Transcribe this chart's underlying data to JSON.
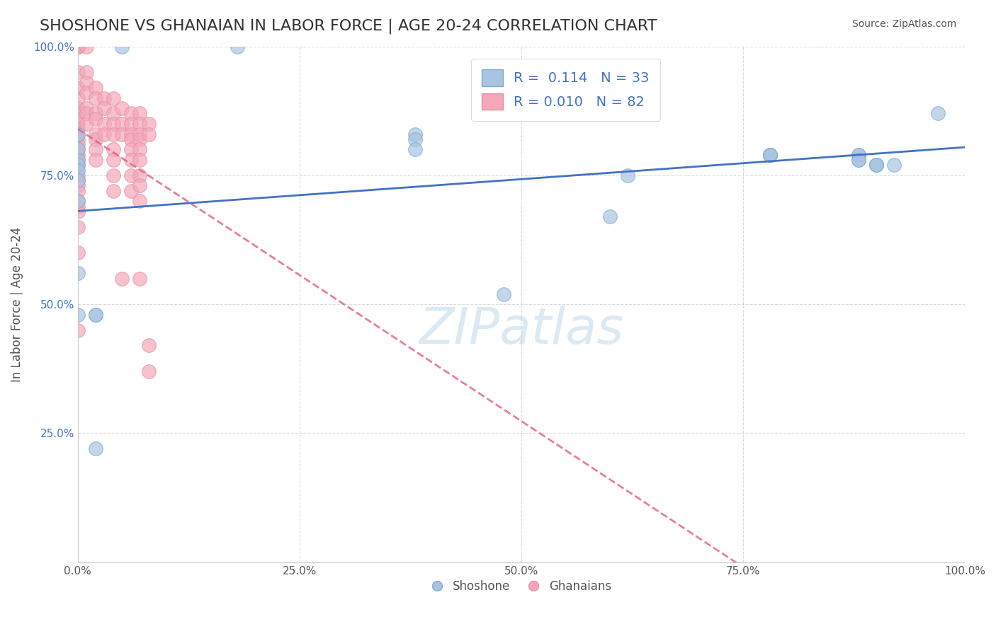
{
  "title": "SHOSHONE VS GHANAIAN IN LABOR FORCE | AGE 20-24 CORRELATION CHART",
  "source_text": "Source: ZipAtlas.com",
  "xlabel": "",
  "ylabel": "In Labor Force | Age 20-24",
  "xlim": [
    0.0,
    1.0
  ],
  "ylim": [
    0.0,
    1.0
  ],
  "xtick_labels": [
    "0.0%",
    "25.0%",
    "50.0%",
    "75.0%",
    "100.0%"
  ],
  "xtick_positions": [
    0.0,
    0.25,
    0.5,
    0.75,
    1.0
  ],
  "ytick_labels": [
    "25.0%",
    "50.0%",
    "75.0%",
    "100.0%"
  ],
  "ytick_positions": [
    0.25,
    0.5,
    0.75,
    1.0
  ],
  "shoshone_R": "0.114",
  "shoshone_N": "33",
  "ghanaian_R": "0.010",
  "ghanaian_N": "82",
  "shoshone_color": "#a8c4e0",
  "ghanaian_color": "#f4a7b9",
  "shoshone_line_color": "#4472c4",
  "ghanaian_line_color": "#e06080",
  "watermark": "ZIPatlas",
  "shoshone_x": [
    0.05,
    0.18,
    0.0,
    0.0,
    0.0,
    0.0,
    0.0,
    0.0,
    0.0,
    0.0,
    0.0,
    0.02,
    0.02,
    0.02,
    0.38,
    0.38,
    0.38,
    0.48,
    0.6,
    0.62,
    0.78,
    0.78,
    0.78,
    0.78,
    0.88,
    0.88,
    0.88,
    0.88,
    0.9,
    0.9,
    0.9,
    0.92,
    0.97
  ],
  "shoshone_y": [
    1.0,
    1.0,
    0.83,
    0.8,
    0.78,
    0.77,
    0.76,
    0.74,
    0.7,
    0.56,
    0.48,
    0.48,
    0.48,
    0.22,
    0.83,
    0.82,
    0.8,
    0.52,
    0.67,
    0.75,
    0.79,
    0.79,
    0.79,
    0.79,
    0.79,
    0.79,
    0.78,
    0.78,
    0.77,
    0.77,
    0.77,
    0.77,
    0.87
  ],
  "ghanaian_x": [
    0.0,
    0.0,
    0.0,
    0.0,
    0.0,
    0.0,
    0.0,
    0.0,
    0.0,
    0.0,
    0.0,
    0.0,
    0.0,
    0.0,
    0.0,
    0.0,
    0.0,
    0.0,
    0.0,
    0.0,
    0.0,
    0.0,
    0.0,
    0.0,
    0.0,
    0.0,
    0.0,
    0.0,
    0.0,
    0.01,
    0.01,
    0.01,
    0.01,
    0.01,
    0.01,
    0.01,
    0.02,
    0.02,
    0.02,
    0.02,
    0.02,
    0.02,
    0.02,
    0.02,
    0.03,
    0.03,
    0.03,
    0.03,
    0.04,
    0.04,
    0.04,
    0.04,
    0.04,
    0.04,
    0.04,
    0.04,
    0.05,
    0.05,
    0.05,
    0.05,
    0.06,
    0.06,
    0.06,
    0.06,
    0.06,
    0.06,
    0.06,
    0.06,
    0.07,
    0.07,
    0.07,
    0.07,
    0.07,
    0.07,
    0.07,
    0.07,
    0.07,
    0.07,
    0.08,
    0.08,
    0.08,
    0.08
  ],
  "ghanaian_y": [
    1.0,
    1.0,
    1.0,
    1.0,
    0.95,
    0.92,
    0.9,
    0.88,
    0.87,
    0.86,
    0.85,
    0.84,
    0.83,
    0.82,
    0.81,
    0.8,
    0.79,
    0.78,
    0.77,
    0.75,
    0.74,
    0.73,
    0.72,
    0.7,
    0.69,
    0.68,
    0.65,
    0.6,
    0.45,
    1.0,
    0.95,
    0.93,
    0.91,
    0.88,
    0.87,
    0.85,
    0.92,
    0.9,
    0.87,
    0.86,
    0.83,
    0.82,
    0.8,
    0.78,
    0.9,
    0.88,
    0.85,
    0.83,
    0.9,
    0.87,
    0.85,
    0.83,
    0.8,
    0.78,
    0.75,
    0.72,
    0.88,
    0.85,
    0.83,
    0.55,
    0.87,
    0.85,
    0.83,
    0.82,
    0.8,
    0.78,
    0.75,
    0.72,
    0.87,
    0.85,
    0.83,
    0.82,
    0.8,
    0.78,
    0.75,
    0.73,
    0.7,
    0.55,
    0.85,
    0.83,
    0.42,
    0.37
  ]
}
